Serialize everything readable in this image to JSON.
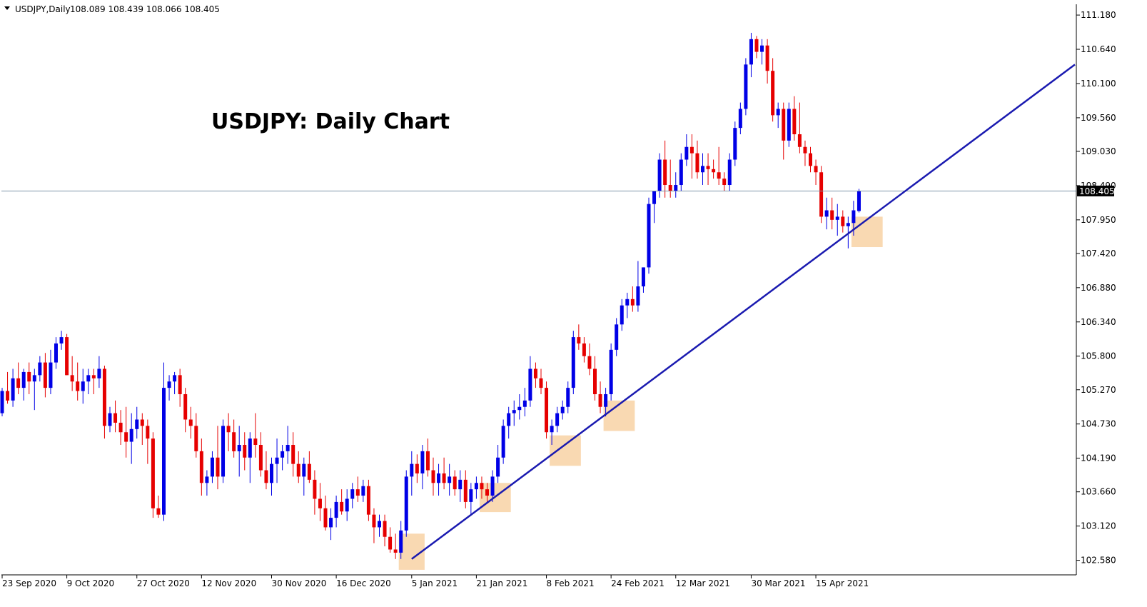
{
  "header": {
    "symbol": "USDJPY,Daily",
    "ohlc": "108.089 108.439 108.066 108.405"
  },
  "chart_data": {
    "type": "candlestick",
    "title": "USDJPY: Daily Chart",
    "ylim": [
      102.35,
      111.35
    ],
    "y_ticks": [
      111.18,
      110.64,
      110.1,
      109.56,
      109.03,
      108.49,
      107.95,
      107.42,
      106.88,
      106.34,
      105.8,
      105.27,
      104.73,
      104.19,
      103.66,
      103.12,
      102.58
    ],
    "y_tick_labels": [
      "111.180",
      "110.640",
      "110.100",
      "109.560",
      "109.030",
      "108.490",
      "107.950",
      "107.420",
      "106.880",
      "106.340",
      "105.800",
      "105.270",
      "104.730",
      "104.190",
      "103.660",
      "103.120",
      "102.580"
    ],
    "x_tick_labels": [
      "23 Sep 2020",
      "9 Oct 2020",
      "27 Oct 2020",
      "12 Nov 2020",
      "30 Nov 2020",
      "16 Dec 2020",
      "5 Jan 2021",
      "21 Jan 2021",
      "8 Feb 2021",
      "24 Feb 2021",
      "12 Mar 2021",
      "30 Mar 2021",
      "15 Apr 2021"
    ],
    "x_tick_index": [
      0,
      12,
      25,
      37,
      50,
      62,
      76,
      88,
      101,
      113,
      125,
      139,
      151
    ],
    "current_price": 108.405,
    "current_price_label": "108.405",
    "bull_color": "#0000e6",
    "bear_color": "#e60000",
    "trendline": {
      "start": {
        "index": 76,
        "price": 102.6
      },
      "end": {
        "index": 159,
        "price": 107.86
      },
      "color": "#1a1ab0"
    },
    "support_zones": [
      {
        "from_index": 74,
        "to_index": 78,
        "low": 102.43,
        "high": 103.0
      },
      {
        "from_index": 89,
        "to_index": 94,
        "low": 103.34,
        "high": 103.8
      },
      {
        "from_index": 102,
        "to_index": 107,
        "low": 104.07,
        "high": 104.55
      },
      {
        "from_index": 112,
        "to_index": 117,
        "low": 104.62,
        "high": 105.1
      },
      {
        "from_index": 158,
        "to_index": 163,
        "low": 107.52,
        "high": 108.0
      }
    ],
    "candles": [
      [
        104.9,
        105.3,
        104.85,
        105.25
      ],
      [
        105.25,
        105.55,
        105.05,
        105.1
      ],
      [
        105.1,
        105.6,
        105.0,
        105.45
      ],
      [
        105.45,
        105.7,
        105.2,
        105.3
      ],
      [
        105.3,
        105.6,
        105.1,
        105.55
      ],
      [
        105.55,
        105.7,
        105.2,
        105.4
      ],
      [
        105.4,
        105.6,
        104.95,
        105.5
      ],
      [
        105.5,
        105.8,
        105.4,
        105.7
      ],
      [
        105.7,
        105.85,
        105.15,
        105.3
      ],
      [
        105.3,
        105.9,
        105.2,
        105.7
      ],
      [
        105.7,
        106.1,
        105.6,
        106.0
      ],
      [
        106.0,
        106.2,
        105.9,
        106.1
      ],
      [
        106.1,
        106.15,
        105.5,
        105.5
      ],
      [
        105.5,
        105.8,
        105.25,
        105.4
      ],
      [
        105.4,
        105.7,
        105.1,
        105.25
      ],
      [
        105.25,
        105.6,
        105.05,
        105.4
      ],
      [
        105.4,
        105.6,
        105.2,
        105.5
      ],
      [
        105.5,
        105.6,
        105.2,
        105.45
      ],
      [
        105.45,
        105.8,
        105.3,
        105.6
      ],
      [
        105.6,
        105.65,
        104.5,
        104.7
      ],
      [
        104.7,
        105.0,
        104.6,
        104.9
      ],
      [
        104.9,
        105.1,
        104.6,
        104.75
      ],
      [
        104.75,
        104.95,
        104.4,
        104.6
      ],
      [
        104.6,
        105.0,
        104.2,
        104.45
      ],
      [
        104.45,
        104.9,
        104.1,
        104.65
      ],
      [
        104.65,
        105.0,
        104.5,
        104.8
      ],
      [
        104.8,
        104.9,
        104.4,
        104.7
      ],
      [
        104.7,
        104.8,
        104.1,
        104.5
      ],
      [
        104.5,
        104.6,
        103.25,
        103.4
      ],
      [
        103.4,
        103.6,
        103.25,
        103.3
      ],
      [
        103.3,
        105.7,
        103.2,
        105.3
      ],
      [
        105.3,
        105.5,
        105.1,
        105.4
      ],
      [
        105.4,
        105.55,
        105.2,
        105.5
      ],
      [
        105.5,
        105.6,
        105.0,
        105.2
      ],
      [
        105.2,
        105.3,
        104.6,
        104.8
      ],
      [
        104.8,
        105.0,
        104.5,
        104.7
      ],
      [
        104.7,
        104.9,
        104.2,
        104.3
      ],
      [
        104.3,
        104.5,
        103.6,
        103.8
      ],
      [
        103.8,
        104.0,
        103.6,
        103.9
      ],
      [
        103.9,
        104.3,
        103.8,
        104.2
      ],
      [
        104.2,
        104.7,
        103.7,
        103.9
      ],
      [
        103.9,
        104.8,
        103.8,
        104.7
      ],
      [
        104.7,
        104.9,
        104.3,
        104.6
      ],
      [
        104.6,
        104.8,
        104.2,
        104.3
      ],
      [
        104.3,
        104.7,
        103.9,
        104.4
      ],
      [
        104.4,
        104.6,
        104.0,
        104.2
      ],
      [
        104.2,
        104.6,
        103.8,
        104.5
      ],
      [
        104.5,
        104.9,
        104.2,
        104.4
      ],
      [
        104.4,
        104.6,
        103.9,
        104.0
      ],
      [
        104.0,
        104.3,
        103.7,
        103.8
      ],
      [
        103.8,
        104.2,
        103.6,
        104.1
      ],
      [
        104.1,
        104.5,
        103.8,
        104.2
      ],
      [
        104.2,
        104.4,
        104.0,
        104.3
      ],
      [
        104.3,
        104.7,
        104.1,
        104.4
      ],
      [
        104.4,
        104.6,
        103.9,
        104.1
      ],
      [
        104.1,
        104.3,
        103.8,
        103.9
      ],
      [
        103.9,
        104.2,
        103.6,
        104.1
      ],
      [
        104.1,
        104.3,
        103.8,
        103.85
      ],
      [
        103.85,
        104.0,
        103.3,
        103.55
      ],
      [
        103.55,
        103.8,
        103.2,
        103.4
      ],
      [
        103.4,
        103.6,
        103.05,
        103.1
      ],
      [
        103.1,
        103.4,
        102.9,
        103.25
      ],
      [
        103.25,
        103.6,
        103.1,
        103.5
      ],
      [
        103.5,
        103.7,
        103.3,
        103.35
      ],
      [
        103.35,
        103.7,
        103.2,
        103.55
      ],
      [
        103.55,
        103.8,
        103.4,
        103.7
      ],
      [
        103.7,
        103.9,
        103.5,
        103.6
      ],
      [
        103.6,
        103.85,
        103.5,
        103.75
      ],
      [
        103.75,
        103.85,
        103.2,
        103.3
      ],
      [
        103.3,
        103.4,
        102.85,
        103.1
      ],
      [
        103.1,
        103.3,
        102.95,
        103.2
      ],
      [
        103.2,
        103.3,
        102.8,
        102.95
      ],
      [
        102.95,
        103.1,
        102.7,
        102.75
      ],
      [
        102.75,
        103.0,
        102.6,
        102.7
      ],
      [
        102.7,
        103.2,
        102.6,
        103.05
      ],
      [
        103.05,
        104.0,
        102.95,
        103.9
      ],
      [
        103.9,
        104.3,
        103.6,
        104.1
      ],
      [
        104.1,
        104.25,
        103.8,
        103.95
      ],
      [
        103.95,
        104.4,
        103.7,
        104.3
      ],
      [
        104.3,
        104.5,
        103.9,
        104.0
      ],
      [
        104.0,
        104.2,
        103.6,
        103.8
      ],
      [
        103.8,
        104.1,
        103.6,
        103.95
      ],
      [
        103.95,
        104.2,
        103.7,
        103.8
      ],
      [
        103.8,
        104.1,
        103.6,
        103.9
      ],
      [
        103.9,
        104.0,
        103.6,
        103.7
      ],
      [
        103.7,
        104.0,
        103.5,
        103.85
      ],
      [
        103.85,
        104.0,
        103.4,
        103.5
      ],
      [
        103.5,
        103.8,
        103.3,
        103.7
      ],
      [
        103.7,
        103.9,
        103.55,
        103.8
      ],
      [
        103.8,
        103.9,
        103.55,
        103.7
      ],
      [
        103.7,
        103.8,
        103.5,
        103.6
      ],
      [
        103.6,
        104.0,
        103.5,
        103.9
      ],
      [
        103.9,
        104.4,
        103.8,
        104.2
      ],
      [
        104.2,
        104.8,
        104.1,
        104.7
      ],
      [
        104.7,
        105.0,
        104.5,
        104.9
      ],
      [
        104.9,
        105.1,
        104.7,
        104.95
      ],
      [
        104.95,
        105.2,
        104.8,
        105.0
      ],
      [
        105.0,
        105.3,
        104.85,
        105.1
      ],
      [
        105.1,
        105.8,
        105.0,
        105.6
      ],
      [
        105.6,
        105.7,
        105.3,
        105.45
      ],
      [
        105.45,
        105.6,
        105.2,
        105.3
      ],
      [
        105.3,
        105.4,
        104.5,
        104.6
      ],
      [
        104.6,
        104.8,
        104.4,
        104.7
      ],
      [
        104.7,
        105.0,
        104.6,
        104.9
      ],
      [
        104.9,
        105.1,
        104.8,
        105.0
      ],
      [
        105.0,
        105.4,
        104.9,
        105.3
      ],
      [
        105.3,
        106.2,
        105.2,
        106.1
      ],
      [
        106.1,
        106.3,
        105.9,
        106.0
      ],
      [
        106.0,
        106.1,
        105.7,
        105.8
      ],
      [
        105.8,
        106.0,
        105.5,
        105.6
      ],
      [
        105.6,
        105.8,
        105.1,
        105.2
      ],
      [
        105.2,
        105.4,
        104.9,
        105.0
      ],
      [
        105.0,
        105.3,
        104.85,
        105.2
      ],
      [
        105.2,
        106.0,
        105.1,
        105.9
      ],
      [
        105.9,
        106.4,
        105.8,
        106.3
      ],
      [
        106.3,
        106.7,
        106.2,
        106.6
      ],
      [
        106.6,
        106.8,
        106.4,
        106.7
      ],
      [
        106.7,
        106.9,
        106.5,
        106.6
      ],
      [
        106.6,
        107.3,
        106.5,
        106.9
      ],
      [
        106.9,
        107.2,
        106.8,
        107.2
      ],
      [
        107.2,
        108.3,
        107.1,
        108.2
      ],
      [
        108.2,
        108.4,
        107.9,
        108.4
      ],
      [
        108.4,
        109.0,
        108.3,
        108.9
      ],
      [
        108.9,
        109.2,
        108.3,
        108.5
      ],
      [
        108.5,
        108.9,
        108.3,
        108.4
      ],
      [
        108.4,
        108.7,
        108.3,
        108.5
      ],
      [
        108.5,
        109.0,
        108.4,
        108.9
      ],
      [
        108.9,
        109.3,
        108.8,
        109.1
      ],
      [
        109.1,
        109.3,
        108.6,
        109.0
      ],
      [
        109.0,
        109.2,
        108.6,
        108.7
      ],
      [
        108.7,
        109.0,
        108.5,
        108.8
      ],
      [
        108.8,
        109.0,
        108.5,
        108.75
      ],
      [
        108.75,
        108.9,
        108.6,
        108.7
      ],
      [
        108.7,
        109.1,
        108.5,
        108.6
      ],
      [
        108.6,
        108.7,
        108.4,
        108.5
      ],
      [
        108.5,
        109.0,
        108.4,
        108.9
      ],
      [
        108.9,
        109.5,
        108.8,
        109.4
      ],
      [
        109.4,
        109.8,
        109.3,
        109.7
      ],
      [
        109.7,
        110.5,
        109.6,
        110.4
      ],
      [
        110.4,
        110.9,
        110.2,
        110.8
      ],
      [
        110.8,
        110.85,
        110.5,
        110.6
      ],
      [
        110.6,
        110.8,
        110.4,
        110.7
      ],
      [
        110.7,
        110.8,
        110.1,
        110.3
      ],
      [
        110.3,
        110.5,
        109.5,
        109.6
      ],
      [
        109.6,
        109.8,
        109.4,
        109.7
      ],
      [
        109.7,
        109.8,
        108.9,
        109.2
      ],
      [
        109.2,
        109.8,
        109.1,
        109.7
      ],
      [
        109.7,
        109.9,
        109.2,
        109.3
      ],
      [
        109.3,
        109.8,
        109.0,
        109.1
      ],
      [
        109.1,
        109.2,
        108.8,
        109.0
      ],
      [
        109.0,
        109.1,
        108.7,
        108.8
      ],
      [
        108.8,
        108.9,
        108.5,
        108.7
      ],
      [
        108.7,
        108.8,
        107.9,
        108.0
      ],
      [
        108.0,
        108.3,
        107.8,
        108.1
      ],
      [
        108.1,
        108.3,
        107.8,
        107.95
      ],
      [
        107.95,
        108.2,
        107.7,
        108.0
      ],
      [
        108.0,
        108.1,
        107.75,
        107.85
      ],
      [
        107.85,
        108.0,
        107.5,
        107.9
      ],
      [
        107.9,
        108.25,
        107.7,
        108.1
      ],
      [
        108.089,
        108.439,
        108.066,
        108.405
      ]
    ]
  }
}
